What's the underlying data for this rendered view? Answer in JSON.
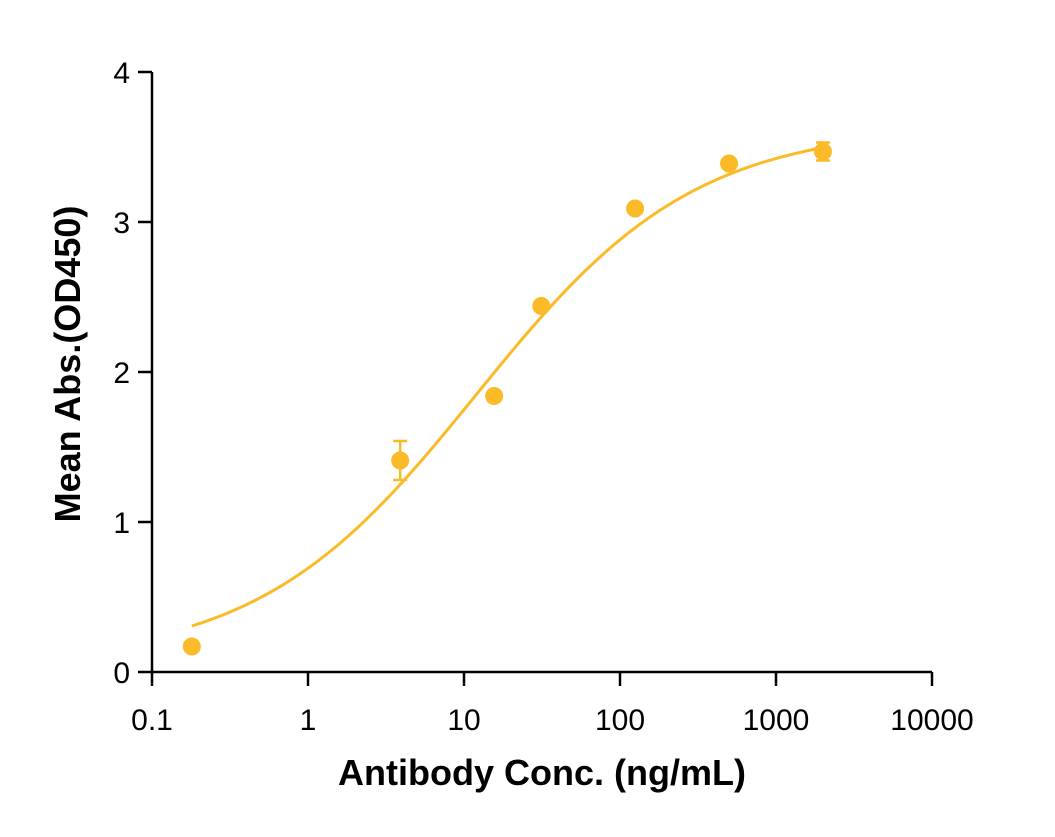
{
  "chart_data": {
    "type": "scatter",
    "title": "",
    "xlabel": "Antibody Conc. (ng/mL)",
    "ylabel": "Mean Abs.(OD450)",
    "xscale": "log",
    "xlim": [
      0.1,
      10000
    ],
    "ylim": [
      0,
      4
    ],
    "xticks": [
      0.1,
      1,
      10,
      100,
      1000,
      10000
    ],
    "xtick_labels": [
      "0.1",
      "1",
      "10",
      "100",
      "1000",
      "10000"
    ],
    "yticks": [
      0,
      1,
      2,
      3,
      4
    ],
    "ytick_labels": [
      "0",
      "1",
      "2",
      "3",
      "4"
    ],
    "grid": false,
    "legend": "none",
    "color": "#FBBA28",
    "series": [
      {
        "x": [
          0.18,
          3.9,
          15.6,
          31.3,
          125,
          500,
          2000
        ],
        "y": [
          0.17,
          1.41,
          1.84,
          2.44,
          3.09,
          3.39,
          3.47
        ],
        "err": [
          0.02,
          0.13,
          0.02,
          0.02,
          0.02,
          0.02,
          0.06
        ]
      }
    ],
    "fit": {
      "model": "4PL",
      "bottom": 0.06,
      "top": 3.64,
      "ec50": 12,
      "hill": 0.62,
      "x_start": 0.18,
      "x_end": 2000
    }
  }
}
